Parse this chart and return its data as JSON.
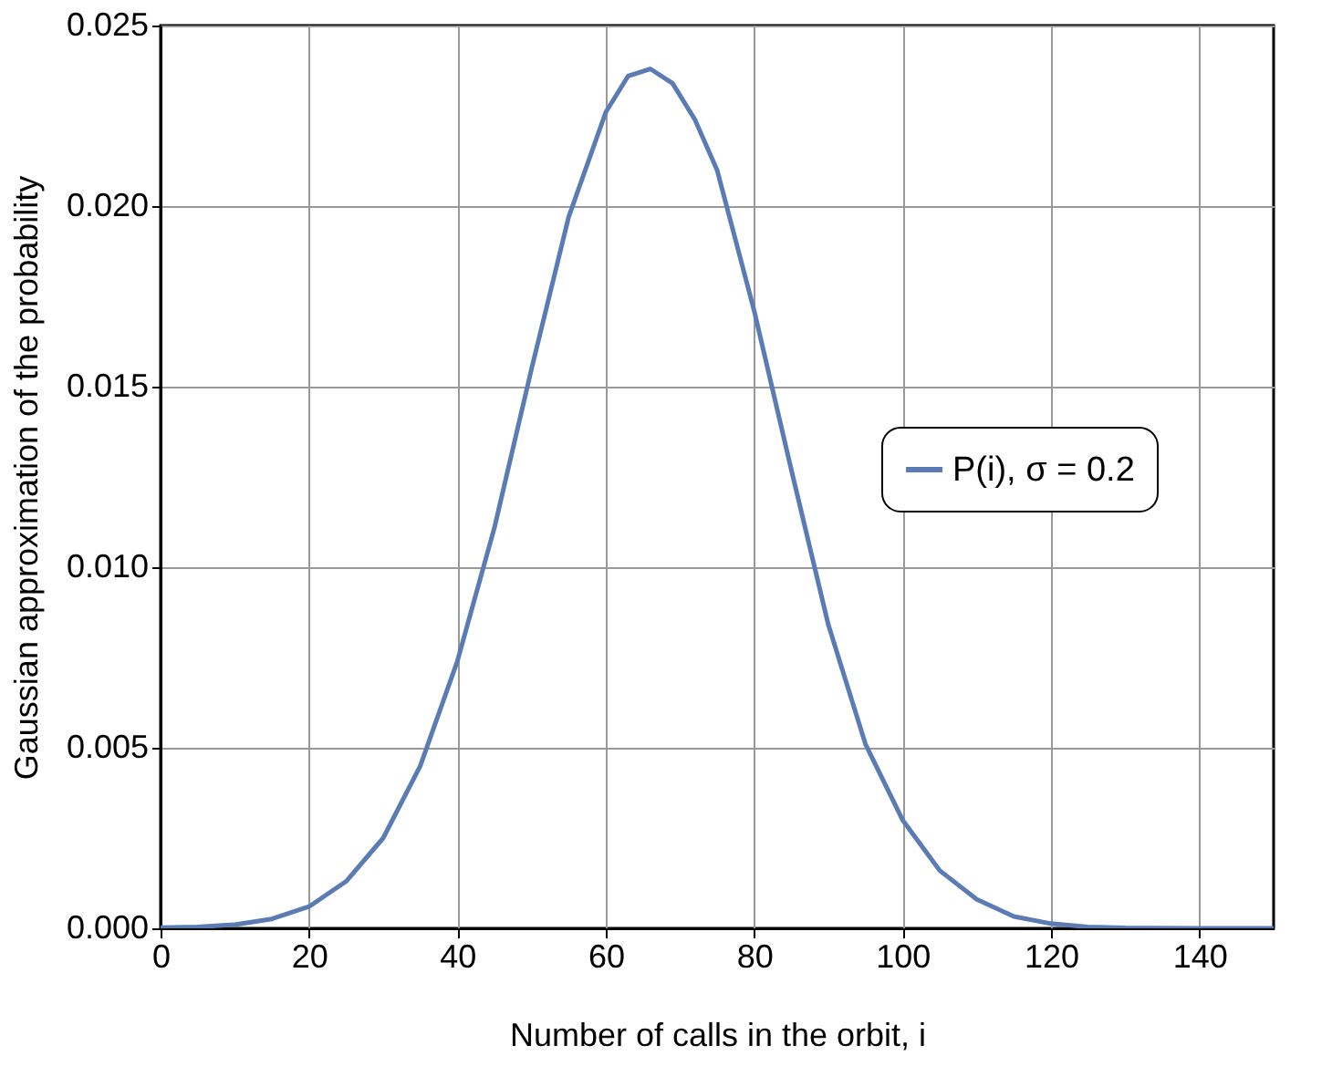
{
  "chart_data": {
    "type": "line",
    "xlabel": "Number of calls in the orbit, i",
    "ylabel": "Gaussian approximation of the probability",
    "x": [
      0,
      5,
      10,
      15,
      20,
      25,
      30,
      35,
      40,
      45,
      50,
      55,
      60,
      63,
      66,
      69,
      72,
      75,
      80,
      85,
      90,
      95,
      100,
      105,
      110,
      115,
      120,
      125,
      130,
      140,
      150
    ],
    "series": [
      {
        "name": "P(i), σ = 0.2",
        "color": "#5b7bb5",
        "values": [
          2e-05,
          4e-05,
          0.0001,
          0.00026,
          0.0006,
          0.0013,
          0.0025,
          0.0045,
          0.0074,
          0.0111,
          0.0155,
          0.0197,
          0.0226,
          0.0236,
          0.0238,
          0.0234,
          0.0224,
          0.021,
          0.0171,
          0.0127,
          0.0084,
          0.0051,
          0.003,
          0.0016,
          0.0008,
          0.00033,
          0.00013,
          4e-05,
          1e-05,
          0,
          0
        ]
      }
    ],
    "xlim": [
      0,
      150
    ],
    "xticks": [
      0,
      20,
      40,
      60,
      80,
      100,
      120,
      140
    ],
    "ylim": [
      0,
      0.025
    ],
    "yticks": [
      {
        "value": 0,
        "label": "0.000"
      },
      0.005,
      {
        "value": 0.01,
        "label": "0.010"
      },
      0.015,
      {
        "value": 0.02,
        "label": "0.020"
      },
      0.025
    ],
    "grid": true,
    "legend": "right",
    "line_style": "solid",
    "marker": "none"
  }
}
